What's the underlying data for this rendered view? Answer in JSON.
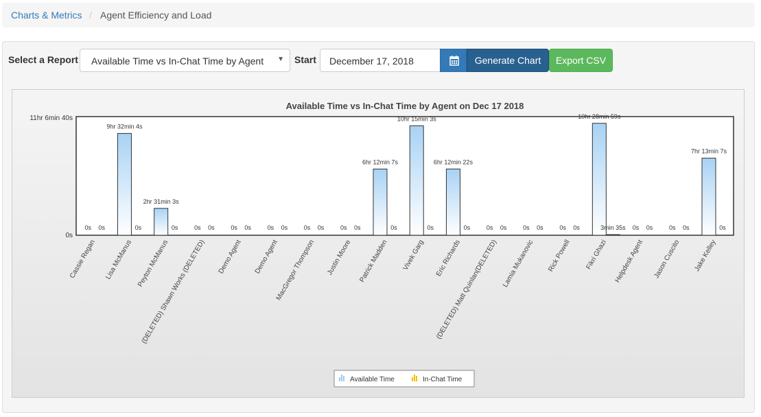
{
  "breadcrumb": {
    "link": "Charts & Metrics",
    "separator": "/",
    "current": "Agent Efficiency and Load"
  },
  "controls": {
    "report_label": "Select a Report",
    "report_value": "Available Time vs In-Chat Time by Agent",
    "start_label": "Start",
    "start_value": "December 17, 2018",
    "generate_label": "Generate Chart",
    "export_label": "Export CSV"
  },
  "colors": {
    "available": "#9ccaf0",
    "inchat": "#f2c200",
    "primary": "#337ab7",
    "success": "#5cb85c"
  },
  "chart_data": {
    "type": "bar",
    "title": "Available Time vs In-Chat Time by Agent on Dec 17 2018",
    "xlabel": "",
    "ylabel": "",
    "y_tick_labels": [
      "0s",
      "11hr 6min 40s"
    ],
    "ylim": [
      0,
      40000
    ],
    "legend_position": "bottom-center",
    "grid": false,
    "categories": [
      "Cassie Regan",
      "Lisa McManus",
      "Peyton McManus",
      "(DELETED) Shawn Works (DELETED)",
      "Demo Agent",
      "Demo Agent",
      "MacGregor Thompson",
      "Justin Moore",
      "Patrick Madden",
      "Vivek Garg",
      "Eric Richards",
      "(DELETED) Matt Quinlan(DELETED)",
      "Lamia Mukanovic",
      "Rick Powell",
      "Fikri Ghazi",
      "Helpdesk Agent",
      "Jason Cuscito",
      "Jake Kelley"
    ],
    "series": [
      {
        "name": "Available Time",
        "values": [
          0,
          34324,
          9063,
          0,
          0,
          0,
          0,
          0,
          22327,
          36903,
          22342,
          0,
          0,
          0,
          37739,
          0,
          0,
          25987
        ],
        "labels": [
          "0s",
          "9hr 32min 4s",
          "2hr 31min 3s",
          "0s",
          "0s",
          "0s",
          "0s",
          "0s",
          "6hr 12min 7s",
          "10hr 15min 3s",
          "6hr 12min 22s",
          "0s",
          "0s",
          "0s",
          "10hr 28min 59s",
          "0s",
          "0s",
          "7hr 13min 7s"
        ]
      },
      {
        "name": "In-Chat Time",
        "values": [
          0,
          0,
          0,
          0,
          0,
          0,
          0,
          0,
          0,
          0,
          0,
          0,
          0,
          0,
          215,
          0,
          0,
          0
        ],
        "labels": [
          "0s",
          "0s",
          "0s",
          "0s",
          "0s",
          "0s",
          "0s",
          "0s",
          "0s",
          "0s",
          "0s",
          "0s",
          "0s",
          "0s",
          "3min 35s",
          "0s",
          "0s",
          "0s"
        ]
      }
    ]
  }
}
